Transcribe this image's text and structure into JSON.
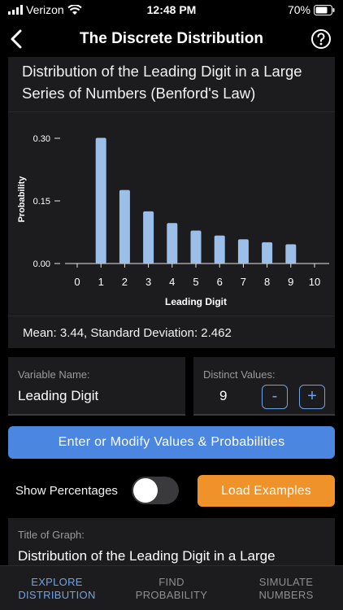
{
  "status": {
    "carrier": "Verizon",
    "time": "12:48 PM",
    "battery": "70%"
  },
  "nav": {
    "title": "The Discrete Distribution"
  },
  "graph": {
    "title": "Distribution of the Leading Digit in a Large Series of Numbers (Benford's Law)",
    "stats": "Mean: 3.44, Standard Deviation: 2.462"
  },
  "chart_data": {
    "type": "bar",
    "title": "",
    "xlabel": "Leading Digit",
    "ylabel": "Probability",
    "x": [
      1,
      2,
      3,
      4,
      5,
      6,
      7,
      8,
      9
    ],
    "values": [
      0.301,
      0.176,
      0.125,
      0.097,
      0.079,
      0.067,
      0.058,
      0.051,
      0.046
    ],
    "xlim": [
      0,
      10
    ],
    "ylim": [
      0,
      0.3
    ],
    "xticks": [
      "0",
      "1",
      "2",
      "3",
      "4",
      "5",
      "6",
      "7",
      "8",
      "9",
      "10"
    ],
    "yticks": [
      "0.00",
      "0.15",
      "0.30"
    ],
    "ytick_values": [
      0,
      0.15,
      0.3
    ],
    "bar_color": "#9bbfe8",
    "grid": false
  },
  "variable": {
    "label": "Variable Name:",
    "value": "Leading Digit"
  },
  "distinct": {
    "label": "Distinct Values:",
    "value": "9",
    "minus": "-",
    "plus": "+"
  },
  "buttons": {
    "enter": "Enter or Modify Values & Probabilities",
    "load": "Load Examples"
  },
  "toggle": {
    "label": "Show Percentages",
    "on": false
  },
  "graph_title_field": {
    "label": "Title of Graph:",
    "value": "Distribution of the Leading Digit in a Large"
  },
  "tabs": [
    {
      "line1": "EXPLORE",
      "line2": "DISTRIBUTION",
      "active": true
    },
    {
      "line1": "FIND",
      "line2": "PROBABILITY",
      "active": false
    },
    {
      "line1": "SIMULATE",
      "line2": "NUMBERS",
      "active": false
    }
  ],
  "colors": {
    "accent": "#4b86e0",
    "orange": "#f0922a",
    "card": "#1c1c1e"
  }
}
